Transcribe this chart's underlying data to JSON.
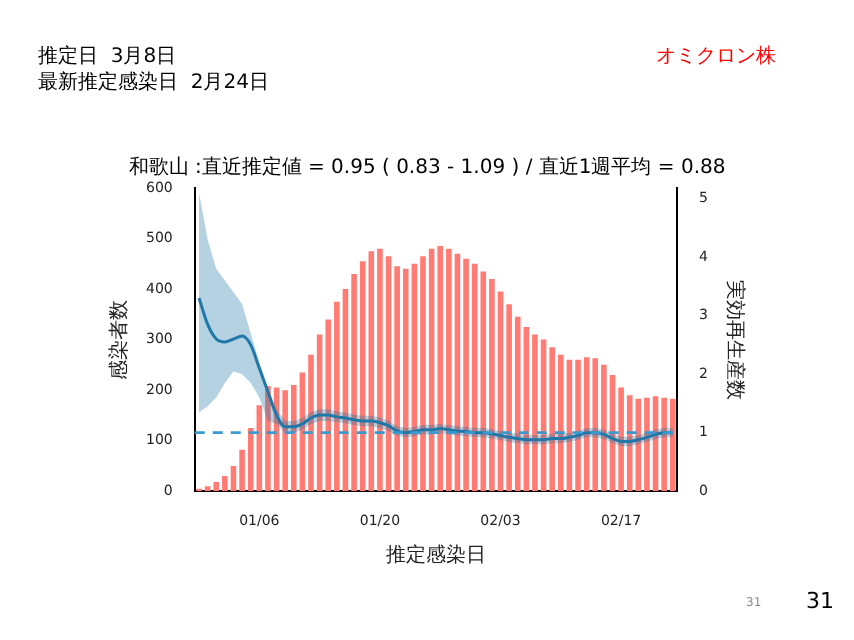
{
  "chart_data": {
    "type": "bar",
    "title": "和歌山 :直近推定値 = 0.95 ( 0.83 - 1.09 ) / 直近1週平均 = 0.88",
    "xlabel": "推定感染日",
    "ylabel": "感染者数",
    "y2label": "実効再生産数",
    "annotations": [
      "推定日  3月8日",
      "最新推定感染日  2月24日",
      "オミクロン株",
      "31",
      "31"
    ],
    "categories": [
      null,
      null,
      null,
      null,
      null,
      null,
      null,
      "01/06",
      null,
      null,
      null,
      null,
      null,
      null,
      null,
      null,
      null,
      null,
      null,
      null,
      null,
      "01/20",
      null,
      null,
      null,
      null,
      null,
      null,
      null,
      null,
      null,
      null,
      null,
      null,
      null,
      "02/03",
      null,
      null,
      null,
      null,
      null,
      null,
      null,
      null,
      null,
      null,
      null,
      null,
      null,
      "02/17",
      null,
      null,
      null,
      null,
      null,
      null
    ],
    "series": [
      {
        "color": "#ff7b73",
        "values": [
          5,
          10,
          18,
          30,
          50,
          82,
          125,
          170,
          208,
          205,
          200,
          210,
          235,
          270,
          310,
          340,
          375,
          400,
          430,
          455,
          475,
          480,
          465,
          445,
          440,
          450,
          465,
          480,
          485,
          480,
          470,
          460,
          450,
          435,
          420,
          395,
          370,
          345,
          325,
          310,
          300,
          285,
          270,
          260,
          260,
          265,
          263,
          250,
          230,
          205,
          190,
          183,
          185,
          188,
          185,
          183
        ]
      },
      {
        "type": "line",
        "axis": "y2",
        "color": "#1f78a8",
        "values": [
          3.3,
          2.85,
          2.6,
          2.55,
          2.6,
          2.65,
          2.5,
          2.1,
          1.7,
          1.3,
          1.1,
          1.1,
          1.15,
          1.25,
          1.3,
          1.3,
          1.27,
          1.25,
          1.22,
          1.2,
          1.2,
          1.17,
          1.12,
          1.03,
          1.0,
          1.02,
          1.05,
          1.05,
          1.07,
          1.05,
          1.03,
          1.02,
          1.0,
          1.0,
          0.98,
          0.95,
          0.92,
          0.9,
          0.88,
          0.88,
          0.88,
          0.9,
          0.9,
          0.92,
          0.95,
          1.0,
          1.0,
          0.97,
          0.9,
          0.85,
          0.85,
          0.88,
          0.92,
          0.97,
          1.0,
          1.0
        ],
        "lower": [
          1.35,
          1.45,
          1.6,
          1.85,
          2.05,
          2.0,
          1.85,
          1.6,
          1.2,
          1.15,
          1.0,
          1.0,
          1.05,
          1.15,
          1.2,
          1.2,
          1.18,
          1.16,
          1.13,
          1.11,
          1.11,
          1.08,
          1.03,
          0.95,
          0.92,
          0.94,
          0.97,
          0.97,
          0.99,
          0.97,
          0.95,
          0.94,
          0.92,
          0.92,
          0.9,
          0.87,
          0.84,
          0.82,
          0.8,
          0.8,
          0.8,
          0.82,
          0.82,
          0.84,
          0.87,
          0.92,
          0.92,
          0.89,
          0.82,
          0.77,
          0.77,
          0.8,
          0.84,
          0.89,
          0.92,
          0.92
        ],
        "upper": [
          5.1,
          4.3,
          3.8,
          3.6,
          3.4,
          3.2,
          2.7,
          2.2,
          1.75,
          1.4,
          1.2,
          1.2,
          1.25,
          1.35,
          1.4,
          1.4,
          1.36,
          1.34,
          1.31,
          1.29,
          1.29,
          1.26,
          1.21,
          1.11,
          1.08,
          1.1,
          1.13,
          1.13,
          1.15,
          1.13,
          1.11,
          1.1,
          1.08,
          1.08,
          1.06,
          1.03,
          1.0,
          0.98,
          0.96,
          0.96,
          0.96,
          0.98,
          0.98,
          1.0,
          1.03,
          1.08,
          1.08,
          1.05,
          0.98,
          0.93,
          0.93,
          0.96,
          1.0,
          1.05,
          1.08,
          1.08
        ]
      }
    ],
    "ylim": [
      0,
      600
    ],
    "yticks": [
      0,
      100,
      200,
      300,
      400,
      500,
      600
    ],
    "y2lim": [
      0,
      5.18
    ],
    "y2ticks": [
      0,
      1,
      2,
      3,
      4,
      5
    ],
    "ref_lines": [
      {
        "axis": "y2",
        "value": 1,
        "color": "#3a9ad0",
        "line_style": "dashed"
      }
    ],
    "grid": false,
    "legend": false
  }
}
